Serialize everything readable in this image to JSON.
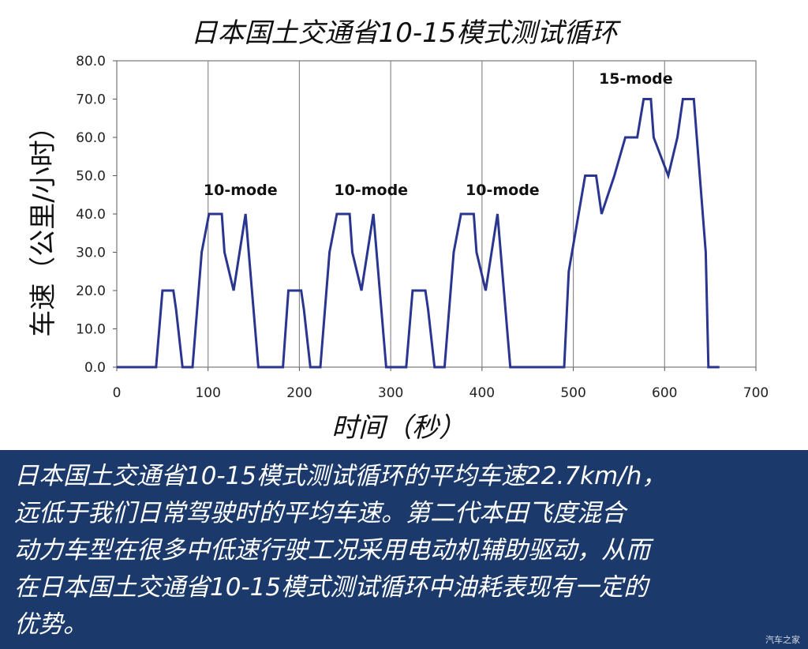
{
  "chart_data": {
    "type": "line",
    "title": "日本国土交通省10-15模式测试循环",
    "xlabel": "时间（秒）",
    "ylabel": "车速（公里/小时）",
    "xlim": [
      0,
      700
    ],
    "ylim": [
      0,
      80
    ],
    "xticks": [
      "0",
      "100",
      "200",
      "300",
      "400",
      "500",
      "600",
      "700"
    ],
    "yticks": [
      "0.0",
      "10.0",
      "20.0",
      "30.0",
      "40.0",
      "50.0",
      "60.0",
      "70.0",
      "80.0"
    ],
    "grid": "vertical",
    "color": "#2a3590",
    "series": [
      {
        "name": "",
        "x": [
          0,
          43,
          50,
          62,
          65,
          72,
          83,
          93,
          101,
          115,
          118,
          128,
          141,
          155,
          158,
          182,
          188,
          202,
          205,
          212,
          223,
          233,
          241,
          255,
          258,
          268,
          281,
          295,
          298,
          317,
          324,
          338,
          341,
          348,
          359,
          369,
          377,
          391,
          394,
          404,
          417,
          431,
          434,
          490,
          495,
          513,
          525,
          531,
          545,
          557,
          570,
          577,
          585,
          588,
          604,
          614,
          620,
          632,
          645,
          648,
          660
        ],
        "y": [
          0,
          0,
          20,
          20,
          15,
          0,
          0,
          30,
          40,
          40,
          30,
          20,
          40,
          0,
          0,
          0,
          20,
          20,
          15,
          0,
          0,
          30,
          40,
          40,
          30,
          20,
          40,
          0,
          0,
          0,
          20,
          20,
          15,
          0,
          0,
          30,
          40,
          40,
          30,
          20,
          40,
          0,
          0,
          0,
          25,
          50,
          50,
          40,
          50,
          60,
          60,
          70,
          70,
          60,
          50,
          60,
          70,
          70,
          30,
          0,
          0
        ]
      }
    ],
    "annotations": [
      {
        "text": "10-mode",
        "x": 95,
        "y": 45
      },
      {
        "text": "10-mode",
        "x": 238,
        "y": 45
      },
      {
        "text": "10-mode",
        "x": 382,
        "y": 45
      },
      {
        "text": "15-mode",
        "x": 528,
        "y": 74
      }
    ]
  },
  "caption": {
    "lines": [
      "日本国土交通省10-15模式测试循环的平均车速22.7km/h，",
      "远低于我们日常驾驶时的平均车速。第二代本田飞度混合",
      "动力车型在很多中低速行驶工况采用电动机辅助驱动，从而",
      "在日本国土交通省10-15模式测试循环中油耗表现有一定的",
      "优势。"
    ],
    "background": "#1b3a6b",
    "text_color": "#ffffff"
  },
  "watermark": "汽车之家"
}
